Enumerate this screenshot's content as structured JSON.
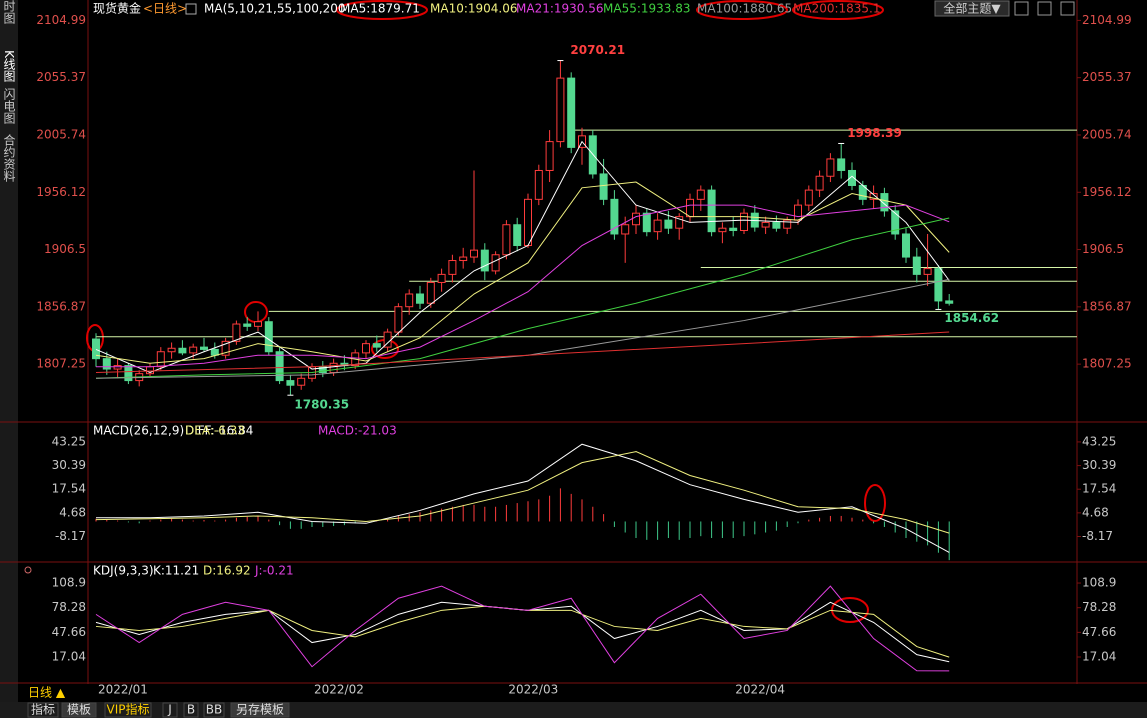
{
  "ui": {
    "tabs": [
      "分时图",
      "K线图",
      "闪电图",
      "合约资料"
    ],
    "theme_button": "全部主题▼",
    "period": "日线 ▲",
    "bottom_tabs": [
      "指标",
      "模板",
      "VIP指标",
      "J",
      "B",
      "BB",
      "另存模板"
    ]
  },
  "chart_data": [
    {
      "type": "candlestick",
      "title": "现货黄金",
      "period": "<日线>",
      "indicator": "MA(5,10,21,55,100,200",
      "categories": [
        "2022/01",
        null,
        null,
        null,
        null,
        null,
        null,
        null,
        null,
        null,
        null,
        null,
        null,
        null,
        null,
        null,
        null,
        null,
        null,
        null,
        "2022/02",
        null,
        null,
        null,
        null,
        null,
        null,
        null,
        null,
        null,
        null,
        null,
        null,
        null,
        null,
        null,
        null,
        null,
        "2022/03",
        null,
        null,
        null,
        null,
        null,
        null,
        null,
        null,
        null,
        null,
        null,
        null,
        null,
        null,
        null,
        null,
        null,
        null,
        null,
        null,
        "2022/04",
        null,
        null,
        null,
        null,
        null,
        null,
        null,
        null,
        null,
        null,
        null,
        null,
        null,
        null,
        null,
        null,
        null,
        null,
        null,
        null
      ],
      "open": [
        1829,
        1812,
        1803,
        1806,
        1793,
        1799,
        1805,
        1818,
        1821,
        1817,
        1822,
        1820,
        1815,
        1827,
        1842,
        1840,
        1844,
        1818,
        1793,
        1789,
        1795,
        1805,
        1800,
        1808,
        1806,
        1817,
        1825,
        1822,
        1835,
        1857,
        1868,
        1860,
        1878,
        1885,
        1897,
        1900,
        1906,
        1888,
        1902,
        1928,
        1910,
        1950,
        1975,
        2000,
        2055,
        1995,
        2005,
        1972,
        1950,
        1920,
        1928,
        1938,
        1922,
        1932,
        1925,
        1935,
        1950,
        1958,
        1922,
        1925,
        1923,
        1938,
        1926,
        1930,
        1925,
        1932,
        1945,
        1958,
        1970,
        1985,
        1975,
        1962,
        1950,
        1955,
        1940,
        1920,
        1900,
        1885,
        1890,
        1862
      ],
      "high": [
        1834,
        1818,
        1812,
        1808,
        1802,
        1808,
        1822,
        1826,
        1828,
        1825,
        1830,
        1826,
        1830,
        1845,
        1848,
        1853,
        1848,
        1822,
        1798,
        1799,
        1808,
        1810,
        1812,
        1815,
        1820,
        1828,
        1832,
        1838,
        1860,
        1872,
        1875,
        1882,
        1890,
        1902,
        1908,
        1975,
        1912,
        1905,
        1932,
        1934,
        1955,
        1980,
        2010,
        2070.21,
        2060,
        2012,
        2010,
        1985,
        1958,
        1935,
        1945,
        1942,
        1938,
        1940,
        1938,
        1955,
        1962,
        1962,
        1930,
        1935,
        1942,
        1945,
        1935,
        1936,
        1935,
        1950,
        1962,
        1975,
        1990,
        1998.39,
        1982,
        1966,
        1962,
        1960,
        1945,
        1925,
        1908,
        1920,
        1893,
        1868
      ],
      "low": [
        1805,
        1798,
        1795,
        1790,
        1788,
        1796,
        1802,
        1812,
        1815,
        1812,
        1818,
        1812,
        1812,
        1824,
        1836,
        1836,
        1815,
        1790,
        1780.35,
        1785,
        1792,
        1796,
        1797,
        1802,
        1803,
        1812,
        1818,
        1818,
        1832,
        1850,
        1855,
        1856,
        1870,
        1878,
        1890,
        1895,
        1880,
        1885,
        1898,
        1905,
        1908,
        1945,
        1965,
        1995,
        1990,
        1980,
        1968,
        1945,
        1915,
        1895,
        1920,
        1918,
        1915,
        1920,
        1915,
        1930,
        1940,
        1918,
        1912,
        1918,
        1920,
        1922,
        1920,
        1922,
        1920,
        1928,
        1940,
        1952,
        1965,
        1968,
        1958,
        1945,
        1942,
        1935,
        1915,
        1895,
        1878,
        1875,
        1854.62,
        1858
      ],
      "close": [
        1812,
        1803,
        1806,
        1793,
        1799,
        1805,
        1818,
        1821,
        1817,
        1822,
        1820,
        1815,
        1827,
        1842,
        1840,
        1844,
        1818,
        1793,
        1789,
        1795,
        1805,
        1800,
        1808,
        1806,
        1817,
        1825,
        1822,
        1835,
        1857,
        1868,
        1860,
        1878,
        1885,
        1897,
        1900,
        1906,
        1888,
        1902,
        1928,
        1910,
        1950,
        1975,
        2000,
        2055,
        1995,
        2005,
        1972,
        1950,
        1920,
        1928,
        1938,
        1922,
        1932,
        1925,
        1935,
        1950,
        1958,
        1922,
        1925,
        1923,
        1938,
        1926,
        1930,
        1925,
        1932,
        1945,
        1958,
        1970,
        1985,
        1975,
        1962,
        1950,
        1955,
        1940,
        1920,
        1900,
        1885,
        1890,
        1862,
        1860
      ],
      "up_color": "#ff3c3c",
      "down_color": "#54d890",
      "ylim": [
        1758,
        2114
      ],
      "yticks": [
        1807.25,
        1856.87,
        1906.5,
        1956.12,
        2005.74,
        2055.37,
        2104.99
      ],
      "levels": [
        {
          "value": 2010,
          "from": 44
        },
        {
          "value": 1891,
          "from": 56
        },
        {
          "value": 1879,
          "from": 29
        },
        {
          "value": 1853,
          "from": 16
        },
        {
          "value": 1831,
          "from": 0
        }
      ],
      "level_color": "#d6f5a8",
      "lines": [
        {
          "label": "MA5:1879.71",
          "color": "#ffffff",
          "x": [
            0,
            5,
            10,
            15,
            20,
            25,
            30,
            35,
            40,
            45,
            50,
            55,
            60,
            65,
            70,
            75,
            79
          ],
          "values": [
            1820,
            1800,
            1818,
            1835,
            1803,
            1808,
            1852,
            1888,
            1910,
            2000,
            1945,
            1930,
            1932,
            1930,
            1970,
            1930,
            1879.71
          ]
        },
        {
          "label": "MA10:1904.06",
          "color": "#f0f080",
          "x": [
            0,
            5,
            10,
            15,
            20,
            25,
            30,
            35,
            40,
            45,
            50,
            55,
            60,
            65,
            70,
            75,
            79
          ],
          "values": [
            1815,
            1808,
            1812,
            1825,
            1818,
            1810,
            1830,
            1868,
            1895,
            1960,
            1965,
            1935,
            1935,
            1932,
            1955,
            1945,
            1904.06
          ]
        },
        {
          "label": "MA21:1930.56",
          "color": "#e040e0",
          "x": [
            0,
            5,
            10,
            15,
            20,
            25,
            30,
            35,
            40,
            45,
            50,
            55,
            60,
            65,
            70,
            75,
            79
          ],
          "values": [
            1805,
            1805,
            1808,
            1815,
            1815,
            1812,
            1822,
            1845,
            1870,
            1910,
            1935,
            1945,
            1945,
            1935,
            1940,
            1945,
            1930.56
          ]
        },
        {
          "label": "MA55:1933.83",
          "color": "#40d040",
          "x": [
            0,
            10,
            20,
            30,
            40,
            50,
            60,
            70,
            79
          ],
          "values": [
            1795,
            1798,
            1800,
            1812,
            1838,
            1860,
            1885,
            1915,
            1933.83
          ]
        },
        {
          "label": "MA100:1880.65",
          "color": "#9a9a9a",
          "x": [
            0,
            20,
            40,
            60,
            79
          ],
          "values": [
            1795,
            1798,
            1815,
            1845,
            1880.65
          ]
        },
        {
          "label": "MA200:1835.1",
          "color": "#e03030",
          "x": [
            0,
            20,
            40,
            60,
            79
          ],
          "values": [
            1800,
            1805,
            1815,
            1825,
            1835.1
          ]
        }
      ]
    },
    {
      "type": "macd",
      "title": "MACD(26,12,9)",
      "ylim": [
        -21.5,
        53
      ],
      "yticks": [
        -8.17,
        4.68,
        17.54,
        30.39,
        43.25
      ],
      "values": [
        1.5,
        1,
        0.5,
        -0.5,
        -1,
        0.5,
        1,
        1.5,
        1,
        0.5,
        0.8,
        0.5,
        1,
        2,
        2.5,
        3,
        1,
        -2,
        -4,
        -4,
        -3,
        -3,
        -2.5,
        -2,
        -1,
        0,
        0.5,
        1,
        3,
        4,
        5,
        6,
        7,
        8,
        9,
        9,
        8,
        8,
        9,
        10,
        11,
        12,
        14,
        18,
        15,
        12,
        8,
        4,
        -3,
        -6,
        -9,
        -10,
        -10,
        -9,
        -10,
        -9,
        -8,
        -9,
        -9,
        -9,
        -8,
        -7,
        -6,
        -5,
        -3,
        -1,
        1,
        2,
        3,
        3,
        2,
        1,
        -1,
        -3,
        -6,
        -9,
        -11,
        -13,
        -17,
        -21.03
      ],
      "value_label": "MACD:-21.03",
      "pos_color": "#ff3c3c",
      "neg_color": "#3ec98a",
      "lines": [
        {
          "label": "DIFF:-16.84",
          "color": "#ffffff",
          "x": [
            0,
            5,
            10,
            15,
            20,
            25,
            30,
            35,
            40,
            45,
            50,
            55,
            60,
            65,
            70,
            75,
            79
          ],
          "values": [
            2,
            2,
            3,
            5,
            0,
            -1,
            6,
            15,
            22,
            42,
            33,
            20,
            12,
            5,
            8,
            -4,
            -16.84
          ]
        },
        {
          "label": "DEA:-6.33",
          "color": "#f0f080",
          "x": [
            0,
            5,
            10,
            15,
            20,
            25,
            30,
            35,
            40,
            45,
            50,
            55,
            60,
            65,
            70,
            75,
            79
          ],
          "values": [
            1,
            1.5,
            2,
            3,
            2,
            0,
            3,
            10,
            17,
            32,
            38,
            25,
            17,
            8,
            7,
            1,
            -6.33
          ]
        }
      ]
    },
    {
      "type": "line",
      "title": "KDJ(9,3,3)",
      "ylim": [
        -14,
        122.6
      ],
      "yticks": [
        17.04,
        47.66,
        78.28,
        108.9
      ],
      "lines": [
        {
          "label": "K:11.21",
          "color": "#ffffff",
          "x": [
            0,
            4,
            8,
            12,
            16,
            20,
            24,
            28,
            32,
            36,
            40,
            44,
            48,
            52,
            56,
            60,
            64,
            68,
            72,
            76,
            79
          ],
          "values": [
            60,
            45,
            60,
            70,
            75,
            35,
            45,
            70,
            85,
            80,
            75,
            80,
            40,
            55,
            75,
            50,
            52,
            85,
            60,
            20,
            11.21
          ]
        },
        {
          "label": "D:16.92",
          "color": "#f0f080",
          "x": [
            0,
            4,
            8,
            12,
            16,
            20,
            24,
            28,
            32,
            36,
            40,
            44,
            48,
            52,
            56,
            60,
            64,
            68,
            72,
            76,
            79
          ],
          "values": [
            55,
            50,
            55,
            65,
            75,
            50,
            42,
            60,
            75,
            80,
            75,
            75,
            55,
            50,
            65,
            55,
            52,
            75,
            70,
            30,
            16.92
          ]
        },
        {
          "label": "J:-0.21",
          "color": "#e040e0",
          "x": [
            0,
            4,
            8,
            12,
            16,
            20,
            24,
            28,
            32,
            36,
            40,
            44,
            48,
            52,
            56,
            60,
            64,
            68,
            72,
            76,
            79
          ],
          "values": [
            70,
            35,
            70,
            85,
            75,
            5,
            50,
            90,
            105,
            80,
            75,
            90,
            10,
            65,
            95,
            40,
            50,
            105,
            40,
            0,
            -0.21
          ]
        }
      ]
    }
  ]
}
